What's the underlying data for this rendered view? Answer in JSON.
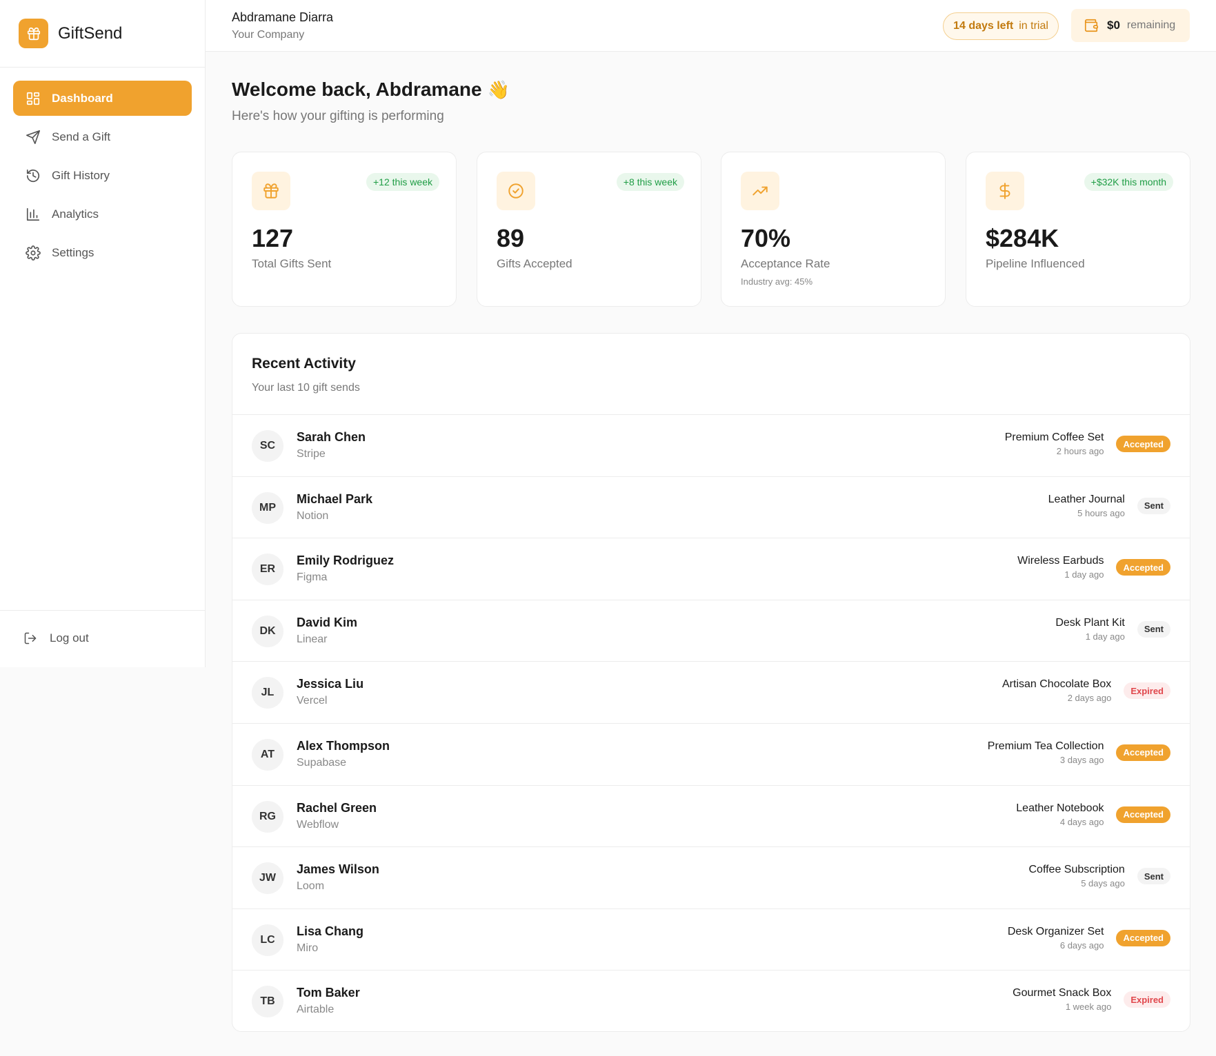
{
  "brand": {
    "name": "GiftSend",
    "icon": "gift-icon"
  },
  "nav": [
    {
      "label": "Dashboard",
      "icon": "dashboard-icon",
      "active": true
    },
    {
      "label": "Send a Gift",
      "icon": "send-icon",
      "active": false
    },
    {
      "label": "Gift History",
      "icon": "history-icon",
      "active": false
    },
    {
      "label": "Analytics",
      "icon": "analytics-icon",
      "active": false
    },
    {
      "label": "Settings",
      "icon": "gear-icon",
      "active": false
    }
  ],
  "logout": {
    "label": "Log out",
    "icon": "logout-icon"
  },
  "header": {
    "user_name": "Abdramane Diarra",
    "company": "Your Company",
    "trial_days": "14 days left",
    "trial_suffix": "in trial",
    "balance_amount": "$0",
    "balance_suffix": "remaining"
  },
  "welcome": {
    "title": "Welcome back, Abdramane",
    "emoji": "👋",
    "subtitle": "Here's how your gifting is performing"
  },
  "stats": [
    {
      "value": "127",
      "label": "Total Gifts Sent",
      "badge": "+12 this week",
      "icon": "gift-icon",
      "note": ""
    },
    {
      "value": "89",
      "label": "Gifts Accepted",
      "badge": "+8 this week",
      "icon": "check-circle-icon",
      "note": ""
    },
    {
      "value": "70%",
      "label": "Acceptance Rate",
      "badge": "",
      "icon": "trending-up-icon",
      "note": "Industry avg: 45%"
    },
    {
      "value": "$284K",
      "label": "Pipeline Influenced",
      "badge": "+$32K this month",
      "icon": "dollar-icon",
      "note": ""
    }
  ],
  "activity": {
    "title": "Recent Activity",
    "subtitle": "Your last 10 gift sends",
    "rows": [
      {
        "initials": "SC",
        "name": "Sarah Chen",
        "company": "Stripe",
        "gift": "Premium Coffee Set",
        "time": "2 hours ago",
        "status": "Accepted"
      },
      {
        "initials": "MP",
        "name": "Michael Park",
        "company": "Notion",
        "gift": "Leather Journal",
        "time": "5 hours ago",
        "status": "Sent"
      },
      {
        "initials": "ER",
        "name": "Emily Rodriguez",
        "company": "Figma",
        "gift": "Wireless Earbuds",
        "time": "1 day ago",
        "status": "Accepted"
      },
      {
        "initials": "DK",
        "name": "David Kim",
        "company": "Linear",
        "gift": "Desk Plant Kit",
        "time": "1 day ago",
        "status": "Sent"
      },
      {
        "initials": "JL",
        "name": "Jessica Liu",
        "company": "Vercel",
        "gift": "Artisan Chocolate Box",
        "time": "2 days ago",
        "status": "Expired"
      },
      {
        "initials": "AT",
        "name": "Alex Thompson",
        "company": "Supabase",
        "gift": "Premium Tea Collection",
        "time": "3 days ago",
        "status": "Accepted"
      },
      {
        "initials": "RG",
        "name": "Rachel Green",
        "company": "Webflow",
        "gift": "Leather Notebook",
        "time": "4 days ago",
        "status": "Accepted"
      },
      {
        "initials": "JW",
        "name": "James Wilson",
        "company": "Loom",
        "gift": "Coffee Subscription",
        "time": "5 days ago",
        "status": "Sent"
      },
      {
        "initials": "LC",
        "name": "Lisa Chang",
        "company": "Miro",
        "gift": "Desk Organizer Set",
        "time": "6 days ago",
        "status": "Accepted"
      },
      {
        "initials": "TB",
        "name": "Tom Baker",
        "company": "Airtable",
        "gift": "Gourmet Snack Box",
        "time": "1 week ago",
        "status": "Expired"
      }
    ]
  },
  "colors": {
    "accent": "#f0a22e",
    "success": "#1f9d45",
    "danger": "#e0474c"
  }
}
